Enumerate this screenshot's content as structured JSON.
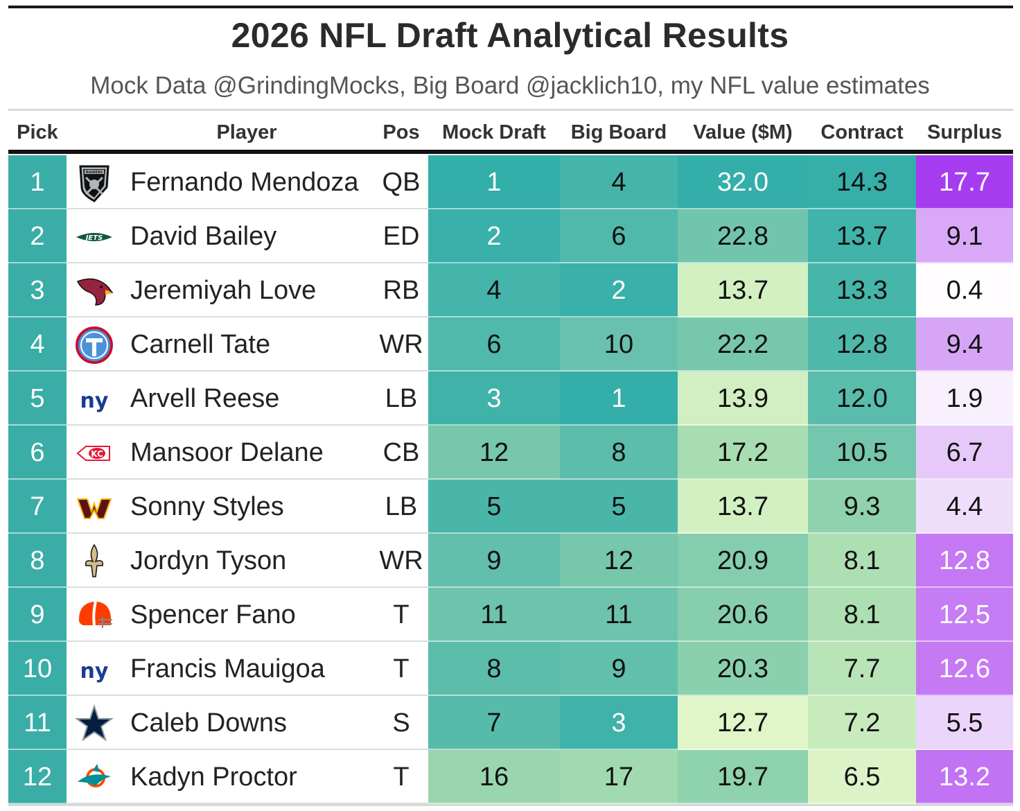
{
  "title": "2026 NFL Draft Analytical Results",
  "subtitle": "Mock Data @GrindingMocks, Big Board @jacklich10, my NFL value estimates",
  "columns": [
    "Pick",
    "Player",
    "Pos",
    "Mock Draft",
    "Big Board",
    "Value ($M)",
    "Contract",
    "Surplus"
  ],
  "colors": {
    "pick_teal": "#3aada6",
    "teal_dark": "#38aea8",
    "teal_light": "#8ed0ac",
    "green_pale": "#def4c6",
    "purple_dark": "#a83ef0",
    "purple_mid": "#c780f4",
    "white": "#ffffff"
  },
  "chart_data": {
    "type": "table",
    "title": "2026 NFL Draft Analytical Results",
    "subtitle": "Mock Data @GrindingMocks, Big Board @jacklich10, my NFL value estimates",
    "rows": [
      {
        "pick": "1",
        "team_icon": "raiders-logo-icon",
        "player": "Fernando Mendoza",
        "pos": "QB",
        "mock": "1",
        "board": "4",
        "value": "32.0",
        "contract": "14.3",
        "surplus": "17.7"
      },
      {
        "pick": "2",
        "team_icon": "jets-logo-icon",
        "player": "David Bailey",
        "pos": "ED",
        "mock": "2",
        "board": "6",
        "value": "22.8",
        "contract": "13.7",
        "surplus": "9.1"
      },
      {
        "pick": "3",
        "team_icon": "cardinals-logo-icon",
        "player": "Jeremiyah Love",
        "pos": "RB",
        "mock": "4",
        "board": "2",
        "value": "13.7",
        "contract": "13.3",
        "surplus": "0.4"
      },
      {
        "pick": "4",
        "team_icon": "titans-logo-icon",
        "player": "Carnell Tate",
        "pos": "WR",
        "mock": "6",
        "board": "10",
        "value": "22.2",
        "contract": "12.8",
        "surplus": "9.4"
      },
      {
        "pick": "5",
        "team_icon": "giants-logo-icon",
        "player": "Arvell Reese",
        "pos": "LB",
        "mock": "3",
        "board": "1",
        "value": "13.9",
        "contract": "12.0",
        "surplus": "1.9"
      },
      {
        "pick": "6",
        "team_icon": "chiefs-logo-icon",
        "player": "Mansoor Delane",
        "pos": "CB",
        "mock": "12",
        "board": "8",
        "value": "17.2",
        "contract": "10.5",
        "surplus": "6.7"
      },
      {
        "pick": "7",
        "team_icon": "commanders-logo-icon",
        "player": "Sonny Styles",
        "pos": "LB",
        "mock": "5",
        "board": "5",
        "value": "13.7",
        "contract": "9.3",
        "surplus": "4.4"
      },
      {
        "pick": "8",
        "team_icon": "saints-logo-icon",
        "player": "Jordyn Tyson",
        "pos": "WR",
        "mock": "9",
        "board": "12",
        "value": "20.9",
        "contract": "8.1",
        "surplus": "12.8"
      },
      {
        "pick": "9",
        "team_icon": "browns-logo-icon",
        "player": "Spencer Fano",
        "pos": "T",
        "mock": "11",
        "board": "11",
        "value": "20.6",
        "contract": "8.1",
        "surplus": "12.5"
      },
      {
        "pick": "10",
        "team_icon": "giants-logo-icon",
        "player": "Francis Mauigoa",
        "pos": "T",
        "mock": "8",
        "board": "9",
        "value": "20.3",
        "contract": "7.7",
        "surplus": "12.6"
      },
      {
        "pick": "11",
        "team_icon": "cowboys-logo-icon",
        "player": "Caleb Downs",
        "pos": "S",
        "mock": "7",
        "board": "3",
        "value": "12.7",
        "contract": "7.2",
        "surplus": "5.5"
      },
      {
        "pick": "12",
        "team_icon": "dolphins-logo-icon",
        "player": "Kadyn Proctor",
        "pos": "T",
        "mock": "16",
        "board": "17",
        "value": "19.7",
        "contract": "6.5",
        "surplus": "13.2"
      }
    ]
  }
}
